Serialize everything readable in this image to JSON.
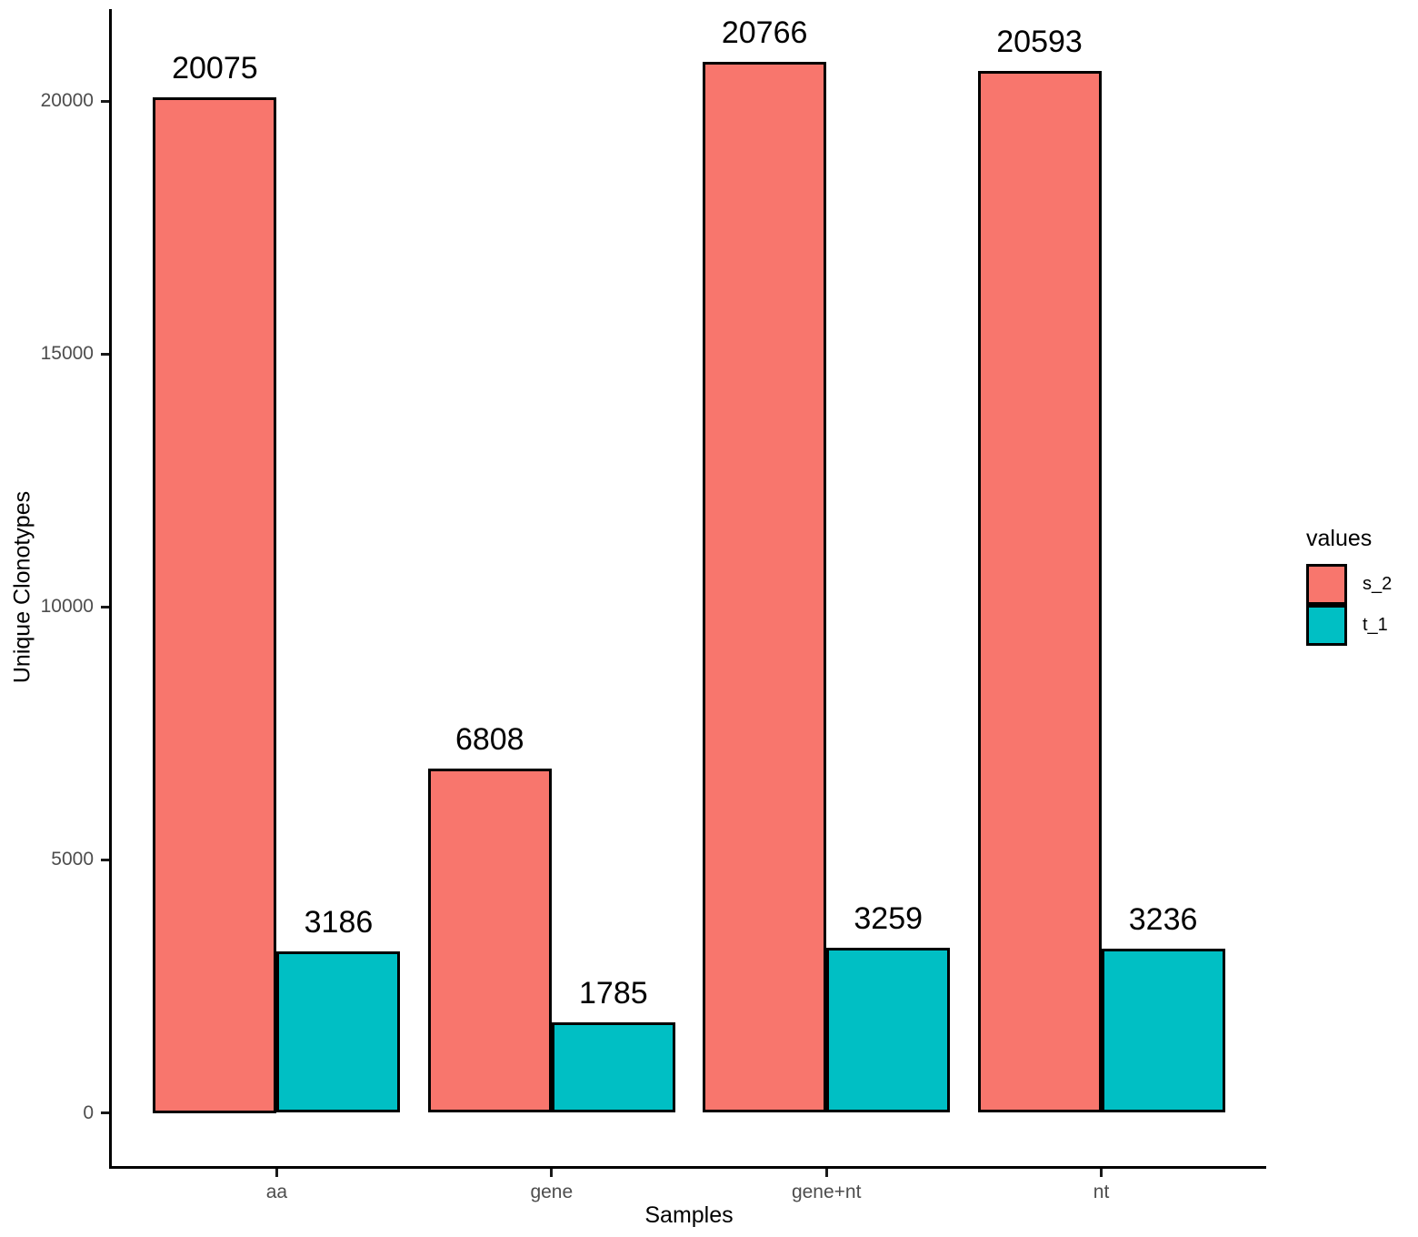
{
  "chart_data": {
    "type": "bar",
    "title": "",
    "xlabel": "Samples",
    "ylabel": "Unique Clonotypes",
    "legend_title": "values",
    "legend_position": "right",
    "grid": false,
    "bar_value_labels": true,
    "categories": [
      "aa",
      "gene",
      "gene+nt",
      "nt"
    ],
    "series": [
      {
        "name": "s_2",
        "color": "#F8766D",
        "values": [
          20075,
          6808,
          20766,
          20593
        ]
      },
      {
        "name": "t_1",
        "color": "#00BFC4",
        "values": [
          3186,
          1785,
          3259,
          3236
        ]
      }
    ],
    "y_ticks": [
      0,
      5000,
      10000,
      15000,
      20000
    ],
    "ylim": [
      0,
      20766
    ],
    "axis_color": "#000000",
    "tick_label_color": "#4D4D4D",
    "bar_border_color": "#000000"
  }
}
